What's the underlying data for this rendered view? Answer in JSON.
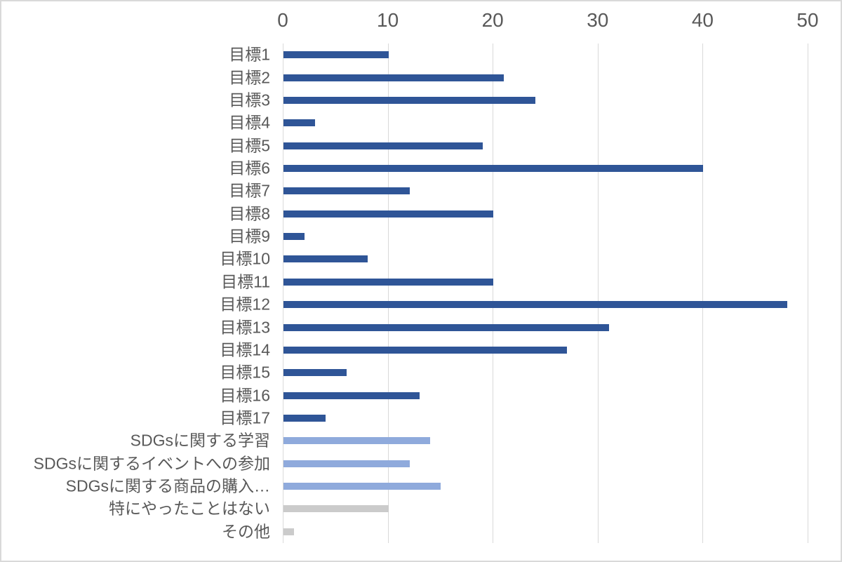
{
  "chart_data": {
    "type": "bar",
    "orientation": "horizontal",
    "title": "",
    "xlabel": "",
    "ylabel": "",
    "axis": {
      "position": "top",
      "min": 0,
      "max": 50,
      "ticks": [
        0,
        10,
        20,
        30,
        40,
        50
      ],
      "grid": true
    },
    "legend": "none",
    "categories": [
      "目標1",
      "目標2",
      "目標3",
      "目標4",
      "目標5",
      "目標6",
      "目標7",
      "目標8",
      "目標9",
      "目標10",
      "目標11",
      "目標12",
      "目標13",
      "目標14",
      "目標15",
      "目標16",
      "目標17",
      "SDGsに関する学習",
      "SDGsに関するイベントへの参加",
      "SDGsに関する商品の購入…",
      "特にやったことはない",
      "その他"
    ],
    "values": [
      10,
      21,
      24,
      3,
      19,
      40,
      12,
      20,
      2,
      8,
      20,
      48,
      31,
      27,
      6,
      13,
      4,
      14,
      12,
      15,
      10,
      1
    ],
    "bar_color_keys": [
      "dark_blue",
      "dark_blue",
      "dark_blue",
      "dark_blue",
      "dark_blue",
      "dark_blue",
      "dark_blue",
      "dark_blue",
      "dark_blue",
      "dark_blue",
      "dark_blue",
      "dark_blue",
      "dark_blue",
      "dark_blue",
      "dark_blue",
      "dark_blue",
      "dark_blue",
      "light_blue",
      "light_blue",
      "light_blue",
      "gray",
      "gray"
    ],
    "colors": {
      "dark_blue": "#2F5597",
      "light_blue": "#8FAADC",
      "gray": "#CBCBCB"
    }
  },
  "style": {
    "gridline_color": "#D9D9D9",
    "axis_text_color": "#595959",
    "frame_border_color": "#D9D9D9",
    "background": "#FFFFFF"
  }
}
